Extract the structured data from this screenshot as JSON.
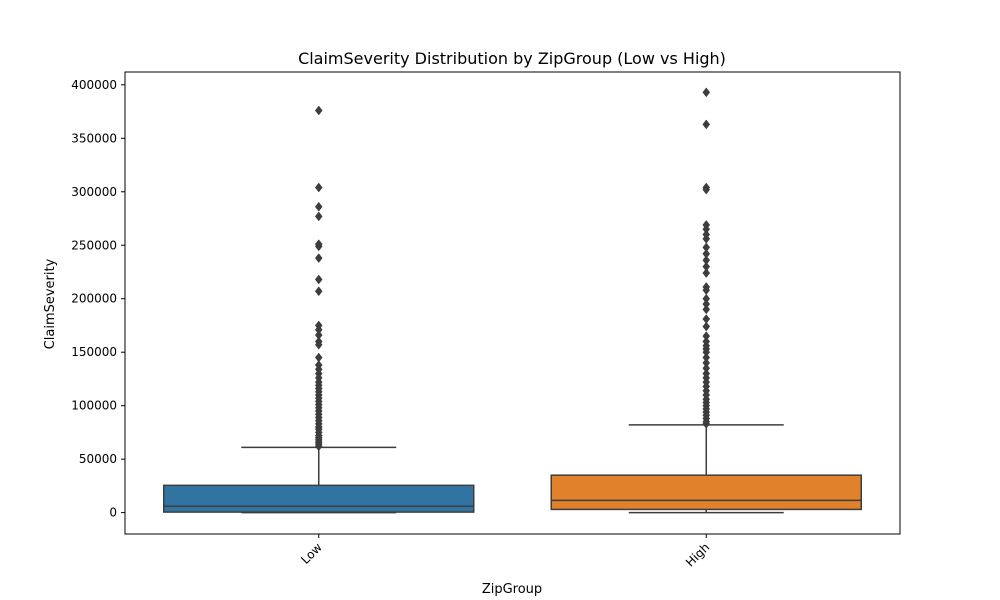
{
  "chart_data": {
    "type": "box",
    "title": "ClaimSeverity Distribution by ZipGroup (Low vs High)",
    "xlabel": "ZipGroup",
    "ylabel": "ClaimSeverity",
    "ylim": [
      -20000,
      412000
    ],
    "yticks": [
      0,
      50000,
      100000,
      150000,
      200000,
      250000,
      300000,
      350000,
      400000
    ],
    "ytick_labels": [
      "0",
      "50000",
      "100000",
      "150000",
      "200000",
      "250000",
      "300000",
      "350000",
      "400000"
    ],
    "categories": [
      "Low",
      "High"
    ],
    "grid": false,
    "boxes": [
      {
        "category": "Low",
        "color": "#3274a1",
        "min": 0,
        "q1": 500,
        "median": 6000,
        "q3": 25500,
        "whisker_high": 61000,
        "outliers": [
          62000,
          64000,
          66000,
          68000,
          70000,
          72000,
          75000,
          78000,
          80000,
          83000,
          86000,
          89000,
          92000,
          95000,
          98000,
          101000,
          104000,
          107000,
          110000,
          113000,
          116000,
          119000,
          122000,
          126000,
          130000,
          134000,
          138000,
          145000,
          157000,
          160000,
          166000,
          171000,
          175000,
          207000,
          218000,
          238000,
          249000,
          251000,
          277000,
          286000,
          304000,
          376000
        ]
      },
      {
        "category": "High",
        "color": "#e1812c",
        "min": 0,
        "q1": 3000,
        "median": 11500,
        "q3": 35000,
        "whisker_high": 82000,
        "outliers": [
          83000,
          85000,
          88000,
          91000,
          94000,
          97000,
          100000,
          103000,
          106000,
          110000,
          114000,
          118000,
          122000,
          126000,
          130000,
          135000,
          140000,
          145000,
          150000,
          153000,
          156000,
          160000,
          165000,
          174000,
          181000,
          190000,
          195000,
          200000,
          208000,
          211000,
          224000,
          230000,
          236000,
          242000,
          248000,
          256000,
          260000,
          265000,
          269000,
          302000,
          304000,
          363000,
          393000
        ]
      }
    ]
  }
}
